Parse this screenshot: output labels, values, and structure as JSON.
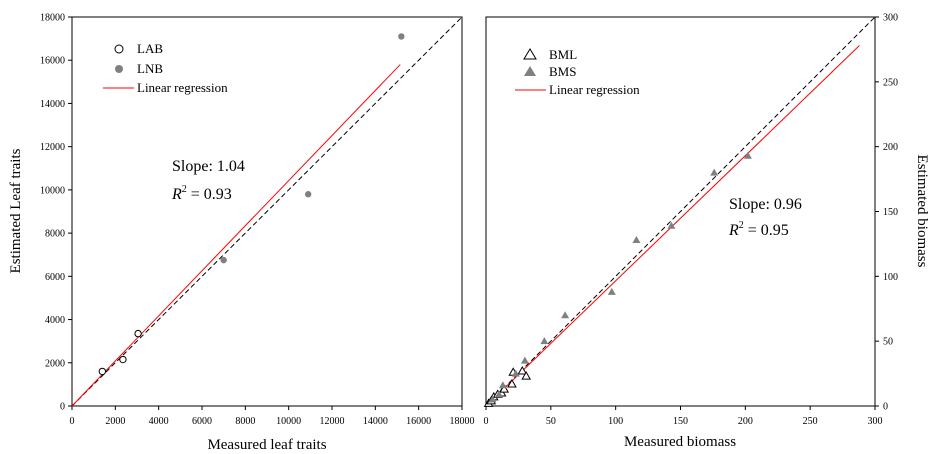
{
  "chart_data": [
    {
      "type": "scatter",
      "xlabel": "Measured leaf traits",
      "ylabel": "Estimated Leaf traits",
      "xlim": [
        0,
        18000
      ],
      "ylim": [
        0,
        18000
      ],
      "xticks": [
        "0",
        "2000",
        "4000",
        "6000",
        "8000",
        "10000",
        "12000",
        "14000",
        "16000",
        "18000"
      ],
      "yticks": [
        "0",
        "2000",
        "4000",
        "6000",
        "8000",
        "10000",
        "12000",
        "14000",
        "16000",
        "18000"
      ],
      "legend_position": "top-left",
      "series": [
        {
          "name": "LAB",
          "marker": "open-circle",
          "color": "#000000",
          "points": [
            [
              1400,
              1600
            ],
            [
              2350,
              2150
            ],
            [
              3050,
              3350
            ]
          ]
        },
        {
          "name": "LNB",
          "marker": "filled-circle",
          "color": "#808080",
          "points": [
            [
              7000,
              6750
            ],
            [
              10900,
              9800
            ],
            [
              15200,
              17100
            ]
          ]
        }
      ],
      "regression": {
        "name": "Linear regression",
        "color": "#ff0000",
        "x": [
          0,
          15150
        ],
        "y": [
          0,
          15800
        ]
      },
      "identity_line": {
        "style": "dashed",
        "color": "#000000"
      },
      "annotation": {
        "slope": "Slope: 1.04",
        "r2_symbol": "R",
        "r2_sup": "2",
        "r2_value": "= 0.93"
      }
    },
    {
      "type": "scatter",
      "xlabel": "Measured biomass",
      "ylabel": "Estimated biomass",
      "xlim": [
        0,
        300
      ],
      "ylim": [
        0,
        300
      ],
      "xticks": [
        "0",
        "50",
        "100",
        "150",
        "200",
        "250",
        "300"
      ],
      "yticks": [
        "0",
        "50",
        "100",
        "150",
        "200",
        "250",
        "300"
      ],
      "legend_position": "top-left",
      "series": [
        {
          "name": "BML",
          "marker": "open-triangle",
          "color": "#000000",
          "points": [
            [
              2,
              2
            ],
            [
              4,
              4
            ],
            [
              6,
              7
            ],
            [
              9,
              9
            ],
            [
              12,
              10
            ],
            [
              14,
              13
            ],
            [
              20,
              17
            ],
            [
              21,
              26
            ],
            [
              28,
              27
            ],
            [
              31,
              23
            ]
          ]
        },
        {
          "name": "BMS",
          "marker": "filled-triangle",
          "color": "#808080",
          "points": [
            [
              5,
              5
            ],
            [
              10,
              9
            ],
            [
              13,
              16
            ],
            [
              23,
              25
            ],
            [
              30,
              35
            ],
            [
              45,
              50
            ],
            [
              61,
              70
            ],
            [
              97,
              88
            ],
            [
              116,
              128
            ],
            [
              143,
              139
            ],
            [
              176,
              180
            ],
            [
              202,
              193
            ]
          ]
        }
      ],
      "regression": {
        "name": "Linear regression",
        "color": "#ff0000",
        "x": [
          0,
          288
        ],
        "y": [
          0,
          278
        ]
      },
      "identity_line": {
        "style": "dashed",
        "color": "#000000"
      },
      "annotation": {
        "slope": "Slope: 0.96",
        "r2_symbol": "R",
        "r2_sup": "2",
        "r2_value": "= 0.95"
      }
    }
  ]
}
